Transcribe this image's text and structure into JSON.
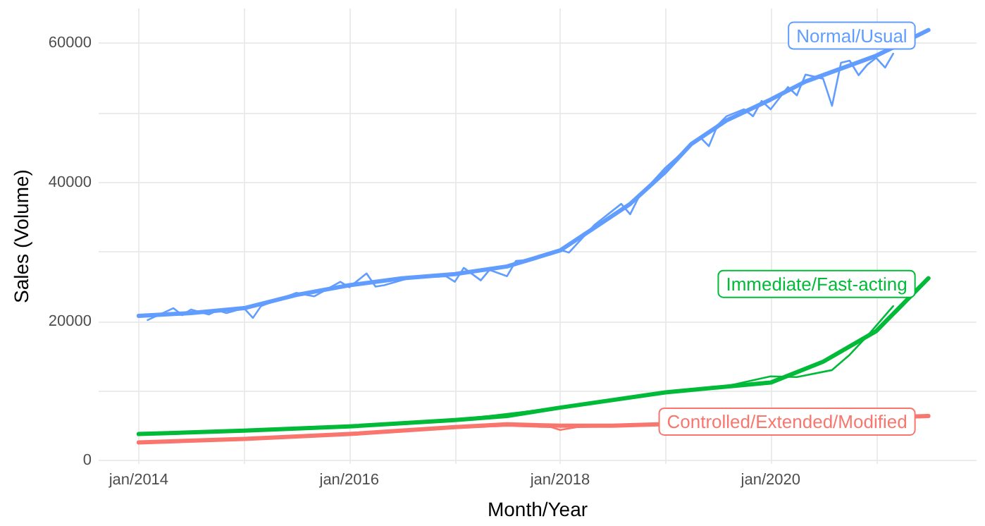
{
  "chart_data": {
    "type": "line",
    "xlabel": "Month/Year",
    "ylabel": "Sales (Volume)",
    "xlim": [
      "2013-08-15",
      "2021-12-15"
    ],
    "xticks": [
      {
        "value": "2014-01",
        "label": "jan/2014"
      },
      {
        "value": "2015-01",
        "label": null
      },
      {
        "value": "2016-01",
        "label": "jan/2016"
      },
      {
        "value": "2017-01",
        "label": null
      },
      {
        "value": "2018-01",
        "label": "jan/2018"
      },
      {
        "value": "2019-01",
        "label": null
      },
      {
        "value": "2020-01",
        "label": "jan/2020"
      },
      {
        "value": "2021-01",
        "label": null
      }
    ],
    "ylim": [
      -500,
      65000
    ],
    "yticks": [
      0,
      {
        "value": 10000,
        "label": null
      },
      20000,
      {
        "value": 30000,
        "label": null
      },
      40000,
      {
        "value": 50000,
        "label": null
      },
      60000
    ],
    "grid": true,
    "legend": false,
    "marker": "none",
    "line_style": "solid",
    "series": [
      {
        "color": "#619cff",
        "x": [
          "2014-02",
          "2014-05",
          "2014-06",
          "2014-07",
          "2014-09",
          "2014-10",
          "2014-11",
          "2015-01",
          "2015-02",
          "2015-03",
          "2015-07",
          "2015-09",
          "2015-12",
          "2016-01",
          "2016-03",
          "2016-04",
          "2016-05",
          "2016-08",
          "2016-12",
          "2017-01",
          "2017-02",
          "2017-04",
          "2017-05",
          "2017-07",
          "2017-08",
          "2017-10",
          "2018-01",
          "2018-02",
          "2018-05",
          "2018-08",
          "2018-09",
          "2018-10",
          "2019-01",
          "2019-05",
          "2019-06",
          "2019-07",
          "2019-08",
          "2019-10",
          "2019-11",
          "2019-12",
          "2020-01",
          "2020-03",
          "2020-04",
          "2020-05",
          "2020-07",
          "2020-08",
          "2020-09",
          "2020-10",
          "2020-11",
          "2020-12",
          "2021-01",
          "2021-02",
          "2021-03"
        ],
        "values": [
          20200,
          21900,
          20900,
          21700,
          21000,
          21600,
          21200,
          21900,
          20500,
          22200,
          24100,
          23600,
          25700,
          24900,
          26900,
          25000,
          25200,
          26300,
          26500,
          25700,
          27700,
          25900,
          27400,
          26500,
          28700,
          28900,
          30300,
          29900,
          33900,
          36900,
          35400,
          37900,
          42100,
          46500,
          45200,
          48200,
          49500,
          50500,
          49500,
          51700,
          50500,
          53700,
          52500,
          55500,
          54900,
          51000,
          57200,
          57500,
          55400,
          56900,
          57900,
          56500,
          58500
        ]
      },
      {
        "name": "Normal/Usual",
        "color": "#619cff",
        "x": [
          "2014-01",
          "2014-07",
          "2015-01",
          "2015-07",
          "2016-01",
          "2016-07",
          "2017-01",
          "2017-07",
          "2018-01",
          "2018-05",
          "2018-09",
          "2019-01",
          "2019-04",
          "2019-08",
          "2020-01",
          "2020-05",
          "2021-01",
          "2021-07"
        ],
        "values": [
          20800,
          21200,
          21900,
          23800,
          25200,
          26200,
          26800,
          27900,
          30200,
          33500,
          36900,
          41500,
          45500,
          48900,
          51900,
          54500,
          58200,
          61900
        ]
      },
      {
        "color": "#00ba38",
        "x": [
          "2014-01",
          "2015-01",
          "2016-01",
          "2017-01",
          "2018-01",
          "2018-07",
          "2019-01",
          "2019-07",
          "2020-01",
          "2020-04",
          "2020-08",
          "2020-10",
          "2020-12",
          "2021-03"
        ],
        "values": [
          3800,
          4200,
          4900,
          5800,
          7600,
          8600,
          9800,
          10400,
          12100,
          12000,
          13000,
          15200,
          17900,
          22200
        ]
      },
      {
        "name": "Immediate/Fast-acting",
        "color": "#00ba38",
        "x": [
          "2014-01",
          "2015-01",
          "2016-01",
          "2017-01",
          "2017-07",
          "2018-01",
          "2019-01",
          "2020-01",
          "2020-07",
          "2021-01",
          "2021-07"
        ],
        "values": [
          3800,
          4300,
          4900,
          5800,
          6400,
          7600,
          9800,
          11200,
          14200,
          18600,
          26200
        ]
      },
      {
        "color": "#f8766d",
        "x": [
          "2014-01",
          "2015-01",
          "2016-01",
          "2017-01",
          "2017-07",
          "2017-12",
          "2018-01",
          "2018-03",
          "2018-07"
        ],
        "values": [
          2500,
          3000,
          3800,
          4700,
          5000,
          4800,
          4400,
          4800,
          5000
        ]
      },
      {
        "name": "Controlled/Extended/Modified",
        "color": "#f8766d",
        "x": [
          "2014-01",
          "2015-01",
          "2016-01",
          "2017-01",
          "2017-07",
          "2018-01",
          "2018-07",
          "2021-07"
        ],
        "values": [
          2600,
          3100,
          3800,
          4800,
          5200,
          5000,
          5000,
          6400
        ]
      }
    ]
  }
}
